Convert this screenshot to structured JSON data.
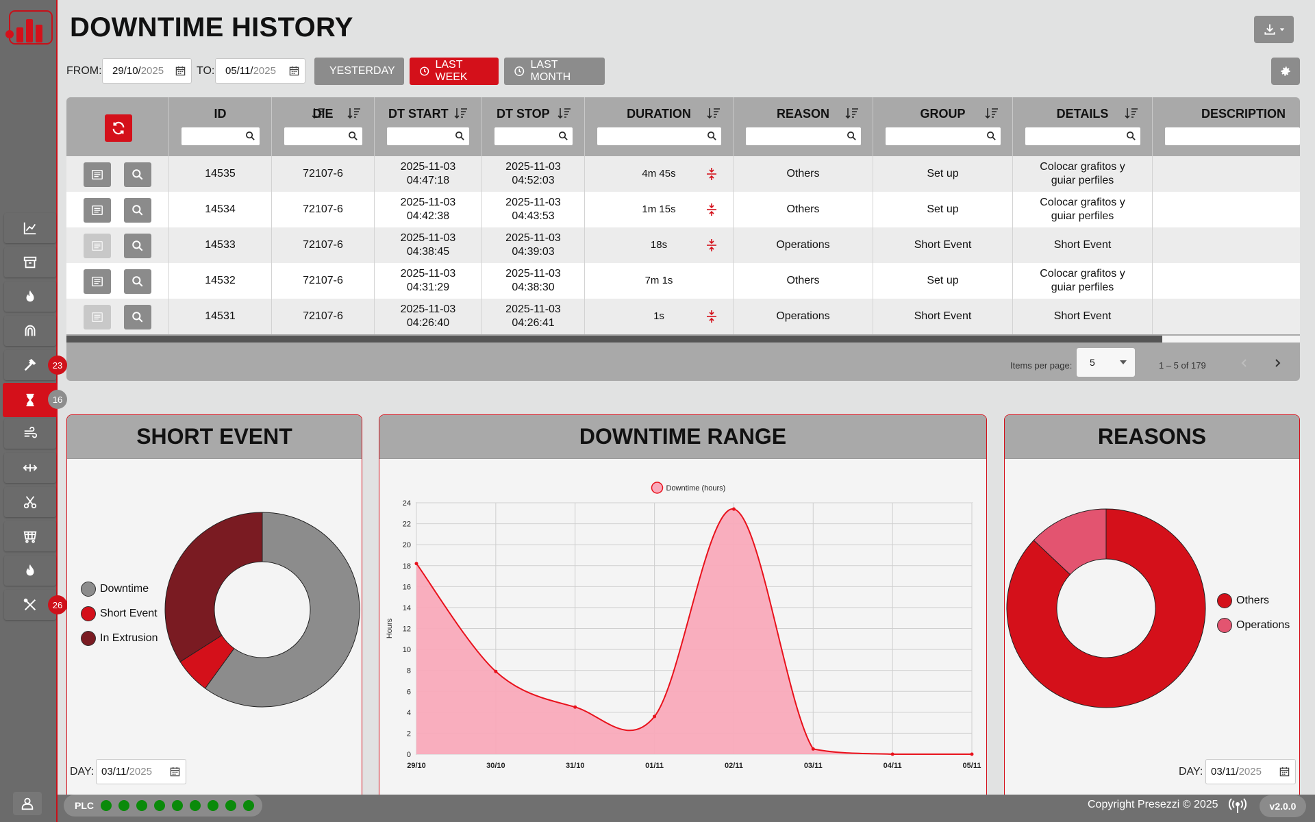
{
  "header": {
    "title": "DOWNTIME HISTORY"
  },
  "filters": {
    "from_label": "FROM:",
    "from_date": "29/10/",
    "from_year": "2025",
    "to_label": "TO:",
    "to_date": "05/11/",
    "to_year": "2025",
    "yesterday": "YESTERDAY",
    "last_week": "LAST WEEK",
    "last_month": "LAST MONTH"
  },
  "table": {
    "columns": [
      "ID",
      "DIE",
      "DT START",
      "DT STOP",
      "DURATION",
      "REASON",
      "GROUP",
      "DETAILS",
      "DESCRIPTION"
    ],
    "rows": [
      {
        "id": "14535",
        "die": "72107-6",
        "start_date": "2025-11-03",
        "start_time": "04:47:18",
        "stop_date": "2025-11-03",
        "stop_time": "04:52:03",
        "duration": "4m 45s",
        "reason": "Others",
        "group": "Set up",
        "details_1": "Colocar grafitos y",
        "details_2": "guiar perfiles"
      },
      {
        "id": "14534",
        "die": "72107-6",
        "start_date": "2025-11-03",
        "start_time": "04:42:38",
        "stop_date": "2025-11-03",
        "stop_time": "04:43:53",
        "duration": "1m 15s",
        "reason": "Others",
        "group": "Set up",
        "details_1": "Colocar grafitos y",
        "details_2": "guiar perfiles"
      },
      {
        "id": "14533",
        "die": "72107-6",
        "start_date": "2025-11-03",
        "start_time": "04:38:45",
        "stop_date": "2025-11-03",
        "stop_time": "04:39:03",
        "duration": "18s",
        "reason": "Operations",
        "group": "Short Event",
        "details_1": "Short Event",
        "details_2": ""
      },
      {
        "id": "14532",
        "die": "72107-6",
        "start_date": "2025-11-03",
        "start_time": "04:31:29",
        "stop_date": "2025-11-03",
        "stop_time": "04:38:30",
        "duration": "7m 1s",
        "reason": "Others",
        "group": "Set up",
        "details_1": "Colocar grafitos y",
        "details_2": "guiar perfiles"
      },
      {
        "id": "14531",
        "die": "72107-6",
        "start_date": "2025-11-03",
        "start_time": "04:26:40",
        "stop_date": "2025-11-03",
        "stop_time": "04:26:41",
        "duration": "1s",
        "reason": "Operations",
        "group": "Short Event",
        "details_1": "Short Event",
        "details_2": ""
      }
    ],
    "items_per_page_label": "Items per page:",
    "items_per_page": "5",
    "range_label": "1 – 5 of 179"
  },
  "sidebar": {
    "badge_tools": "23",
    "badge_downtime": "16",
    "badge_maintenance": "26",
    "icons": [
      "chart-line-icon",
      "archive-icon",
      "flame-icon",
      "magnet-icon",
      "hammer-icon",
      "hourglass-icon",
      "wind-icon",
      "arrows-horizontal-icon",
      "scissors-icon",
      "cart-icon",
      "fire-icon",
      "tools-icon"
    ]
  },
  "cards": {
    "short_event": {
      "title": "SHORT EVENT",
      "legend": [
        "Downtime",
        "Short Event",
        "In Extrusion"
      ],
      "day_label": "DAY:",
      "day_date": "03/11/",
      "day_year": "2025"
    },
    "downtime_range": {
      "title": "DOWNTIME RANGE"
    },
    "reasons": {
      "title": "REASONS",
      "legend": [
        "Others",
        "Operations"
      ],
      "day_label": "DAY:",
      "day_date": "03/11/",
      "day_year": "2025"
    }
  },
  "chart_data": [
    {
      "type": "pie",
      "title": "SHORT EVENT",
      "labels": [
        "Downtime",
        "Short Event",
        "In Extrusion"
      ],
      "values": [
        60,
        6,
        34
      ],
      "colors": [
        "#8c8c8c",
        "#d4101a",
        "#7a1b22"
      ]
    },
    {
      "type": "area",
      "title": "DOWNTIME RANGE",
      "categories": [
        "29/10",
        "30/10",
        "31/10",
        "01/11",
        "02/11",
        "03/11",
        "04/11",
        "05/11"
      ],
      "series": [
        {
          "name": "Downtime (hours)",
          "values": [
            18.2,
            7.9,
            4.5,
            3.6,
            23.4,
            0.5,
            0.0,
            0.0
          ]
        }
      ],
      "ylabel": "Hours",
      "ylim": [
        0,
        24
      ],
      "yticks": [
        "0",
        "2",
        "4",
        "6",
        "8",
        "10",
        "12",
        "14",
        "16",
        "18",
        "20",
        "22",
        "24"
      ],
      "grid": true,
      "legend_position": "top",
      "colors": {
        "line": "#e8121c",
        "fill": "#f9aabb"
      }
    },
    {
      "type": "pie",
      "title": "REASONS",
      "labels": [
        "Others",
        "Operations"
      ],
      "values": [
        87,
        13
      ],
      "colors": [
        "#d4101a",
        "#e35470"
      ]
    }
  ],
  "footer": {
    "plc_label": "PLC",
    "copyright": "Copyright Presezzi © 2025",
    "version": "v2.0.0"
  }
}
